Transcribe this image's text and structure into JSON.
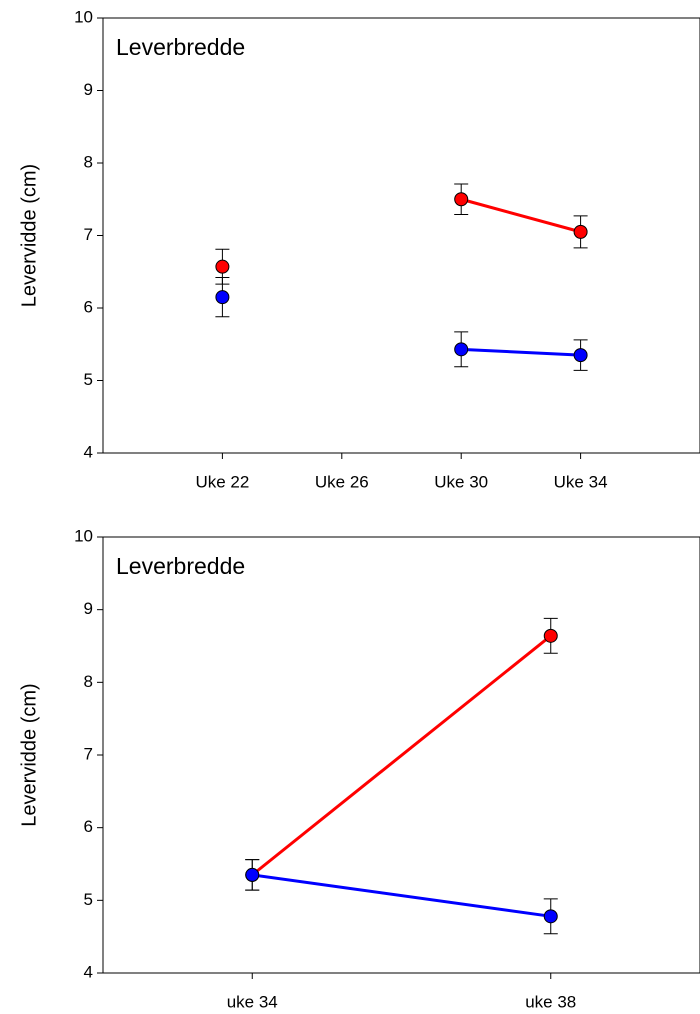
{
  "chart_data": [
    {
      "type": "line",
      "title": "Leverbredde",
      "ylabel": "Levervidde (cm)",
      "x": [
        22,
        26,
        30,
        34
      ],
      "xlim": [
        18,
        38
      ],
      "xticks": [
        {
          "value": 22,
          "label": "Uke 22"
        },
        {
          "value": 26,
          "label": "Uke 26"
        },
        {
          "value": 30,
          "label": "Uke 30"
        },
        {
          "value": 34,
          "label": "Uke 34"
        }
      ],
      "ylim": [
        4,
        10
      ],
      "yticks": [
        4,
        5,
        6,
        7,
        8,
        9,
        10
      ],
      "series": [
        {
          "color": "#ff0000",
          "values": [
            6.57,
            null,
            7.5,
            7.05
          ],
          "errors": [
            0.24,
            null,
            0.21,
            0.22
          ]
        },
        {
          "color": "#0000ff",
          "values": [
            6.15,
            null,
            5.43,
            5.35
          ],
          "errors": [
            0.27,
            null,
            0.24,
            0.21
          ]
        }
      ]
    },
    {
      "type": "line",
      "title": "Leverbredde",
      "ylabel": "Levervidde (cm)",
      "x": [
        34,
        38
      ],
      "xlim": [
        32,
        40
      ],
      "xticks": [
        {
          "value": 34,
          "label": "uke 34"
        },
        {
          "value": 38,
          "label": "uke 38"
        }
      ],
      "ylim": [
        4,
        10
      ],
      "yticks": [
        4,
        5,
        6,
        7,
        8,
        9,
        10
      ],
      "series": [
        {
          "color": "#ff0000",
          "values": [
            5.35,
            8.64
          ],
          "errors": [
            0.21,
            0.24
          ]
        },
        {
          "color": "#0000ff",
          "values": [
            5.35,
            4.78
          ],
          "errors": [
            0.21,
            0.24
          ]
        }
      ]
    }
  ]
}
